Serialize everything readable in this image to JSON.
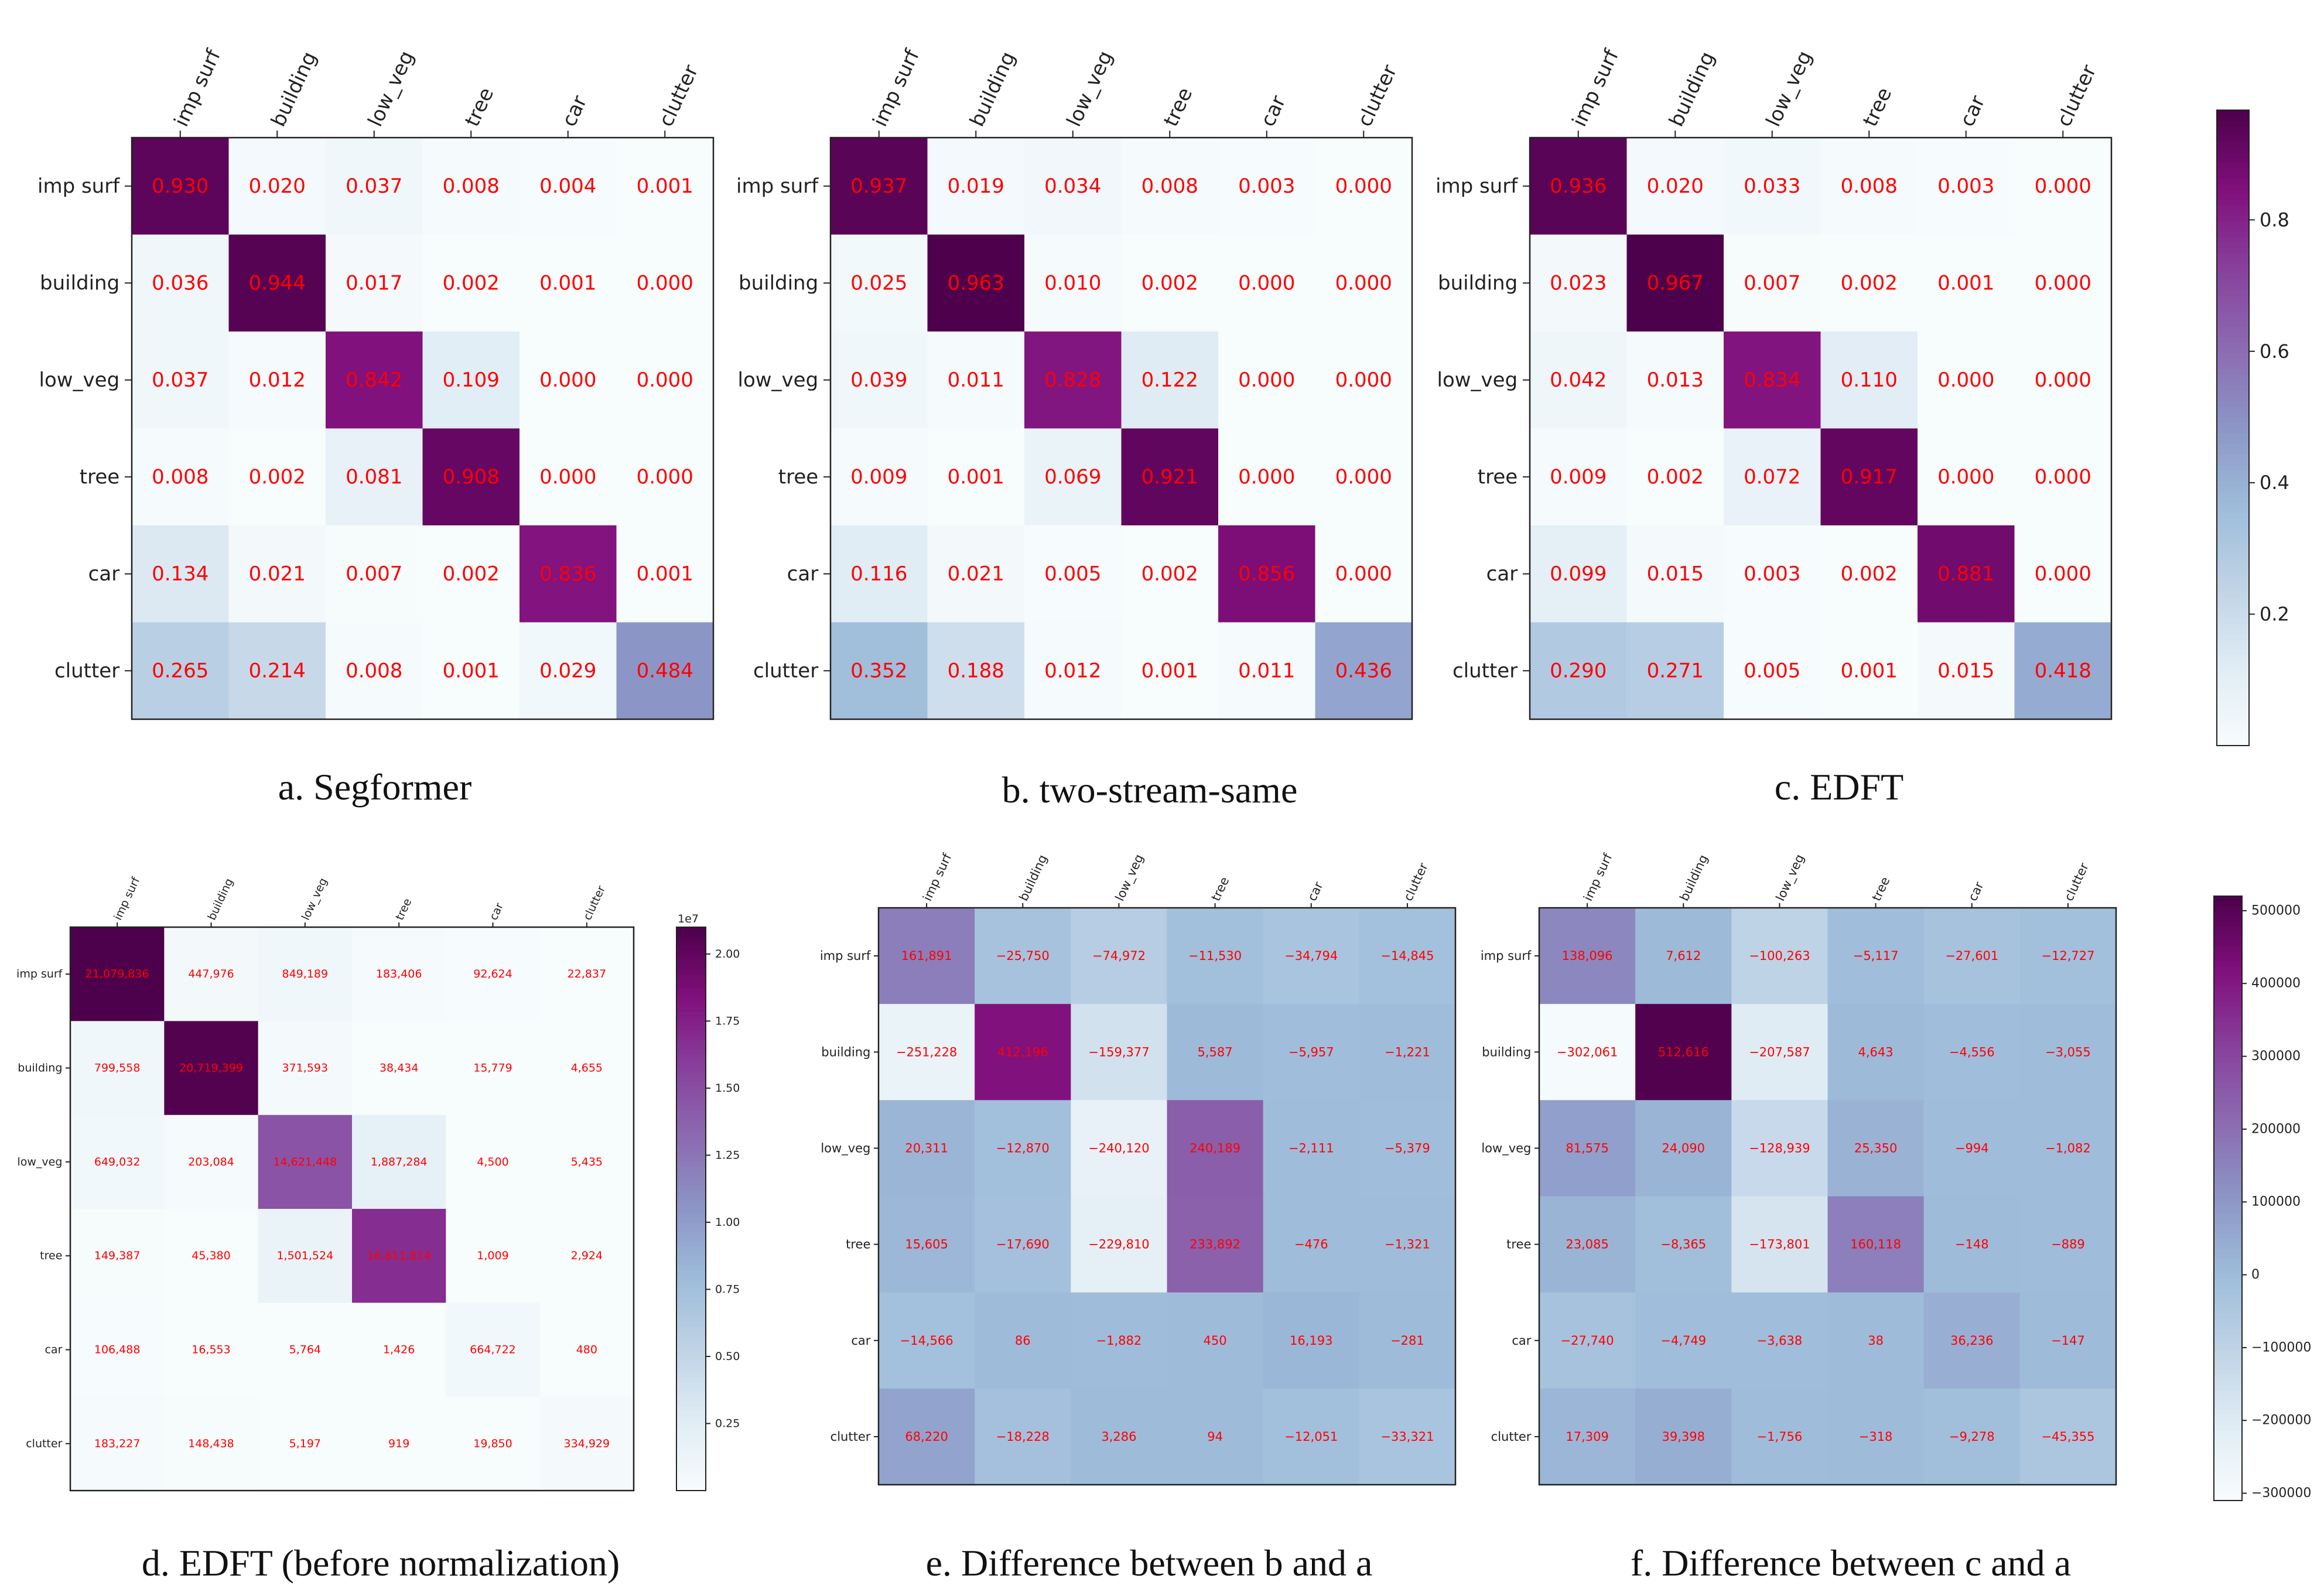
{
  "labels": [
    "imp surf",
    "building",
    "low_veg",
    "tree",
    "car",
    "clutter"
  ],
  "colorbars": [
    {
      "ticks": [
        "0.2",
        "0.4",
        "0.6",
        "0.8"
      ],
      "tick_values": [
        0.2,
        0.4,
        0.6,
        0.8
      ],
      "range": [
        0.0,
        0.967
      ],
      "exponent": ""
    },
    {
      "ticks": [
        "0.25",
        "0.50",
        "0.75",
        "1.00",
        "1.25",
        "1.50",
        "1.75",
        "2.00"
      ],
      "tick_values": [
        0.25,
        0.5,
        0.75,
        1.0,
        1.25,
        1.5,
        1.75,
        2.0
      ],
      "range": [
        0.0,
        2.1
      ],
      "exponent": "1e7"
    },
    {
      "ticks": [
        "−300000",
        "−200000",
        "−100000",
        "0",
        "100000",
        "200000",
        "300000",
        "400000",
        "500000"
      ],
      "tick_values": [
        -300000,
        -200000,
        -100000,
        0,
        100000,
        200000,
        300000,
        400000,
        500000
      ],
      "range": [
        -310000,
        520000
      ],
      "exponent": ""
    }
  ],
  "chart_data": [
    {
      "type": "heatmap",
      "id": "a",
      "title": "a. Segformer",
      "colorbar": 0,
      "values": [
        [
          0.93,
          0.02,
          0.037,
          0.008,
          0.004,
          0.001
        ],
        [
          0.036,
          0.944,
          0.017,
          0.002,
          0.001,
          0.0
        ],
        [
          0.037,
          0.012,
          0.842,
          0.109,
          0.0,
          0.0
        ],
        [
          0.008,
          0.002,
          0.081,
          0.908,
          0.0,
          0.0
        ],
        [
          0.134,
          0.021,
          0.007,
          0.002,
          0.836,
          0.001
        ],
        [
          0.265,
          0.214,
          0.008,
          0.001,
          0.029,
          0.484
        ]
      ],
      "display": [
        [
          "0.930",
          "0.020",
          "0.037",
          "0.008",
          "0.004",
          "0.001"
        ],
        [
          "0.036",
          "0.944",
          "0.017",
          "0.002",
          "0.001",
          "0.000"
        ],
        [
          "0.037",
          "0.012",
          "0.842",
          "0.109",
          "0.000",
          "0.000"
        ],
        [
          "0.008",
          "0.002",
          "0.081",
          "0.908",
          "0.000",
          "0.000"
        ],
        [
          "0.134",
          "0.021",
          "0.007",
          "0.002",
          "0.836",
          "0.001"
        ],
        [
          "0.265",
          "0.214",
          "0.008",
          "0.001",
          "0.029",
          "0.484"
        ]
      ]
    },
    {
      "type": "heatmap",
      "id": "b",
      "title": "b. two-stream-same",
      "colorbar": 0,
      "values": [
        [
          0.937,
          0.019,
          0.034,
          0.008,
          0.003,
          0.0
        ],
        [
          0.025,
          0.963,
          0.01,
          0.002,
          0.0,
          0.0
        ],
        [
          0.039,
          0.011,
          0.828,
          0.122,
          0.0,
          0.0
        ],
        [
          0.009,
          0.001,
          0.069,
          0.921,
          0.0,
          0.0
        ],
        [
          0.116,
          0.021,
          0.005,
          0.002,
          0.856,
          0.0
        ],
        [
          0.352,
          0.188,
          0.012,
          0.001,
          0.011,
          0.436
        ]
      ],
      "display": [
        [
          "0.937",
          "0.019",
          "0.034",
          "0.008",
          "0.003",
          "0.000"
        ],
        [
          "0.025",
          "0.963",
          "0.010",
          "0.002",
          "0.000",
          "0.000"
        ],
        [
          "0.039",
          "0.011",
          "0.828",
          "0.122",
          "0.000",
          "0.000"
        ],
        [
          "0.009",
          "0.001",
          "0.069",
          "0.921",
          "0.000",
          "0.000"
        ],
        [
          "0.116",
          "0.021",
          "0.005",
          "0.002",
          "0.856",
          "0.000"
        ],
        [
          "0.352",
          "0.188",
          "0.012",
          "0.001",
          "0.011",
          "0.436"
        ]
      ]
    },
    {
      "type": "heatmap",
      "id": "c",
      "title": "c. EDFT",
      "colorbar": 0,
      "values": [
        [
          0.936,
          0.02,
          0.033,
          0.008,
          0.003,
          0.0
        ],
        [
          0.023,
          0.967,
          0.007,
          0.002,
          0.001,
          0.0
        ],
        [
          0.042,
          0.013,
          0.834,
          0.11,
          0.0,
          0.0
        ],
        [
          0.009,
          0.002,
          0.072,
          0.917,
          0.0,
          0.0
        ],
        [
          0.099,
          0.015,
          0.003,
          0.002,
          0.881,
          0.0
        ],
        [
          0.29,
          0.271,
          0.005,
          0.001,
          0.015,
          0.418
        ]
      ],
      "display": [
        [
          "0.936",
          "0.020",
          "0.033",
          "0.008",
          "0.003",
          "0.000"
        ],
        [
          "0.023",
          "0.967",
          "0.007",
          "0.002",
          "0.001",
          "0.000"
        ],
        [
          "0.042",
          "0.013",
          "0.834",
          "0.110",
          "0.000",
          "0.000"
        ],
        [
          "0.009",
          "0.002",
          "0.072",
          "0.917",
          "0.000",
          "0.000"
        ],
        [
          "0.099",
          "0.015",
          "0.003",
          "0.002",
          "0.881",
          "0.000"
        ],
        [
          "0.290",
          "0.271",
          "0.005",
          "0.001",
          "0.015",
          "0.418"
        ]
      ]
    },
    {
      "type": "heatmap",
      "id": "d",
      "title": "d. EDFT (before normalization)",
      "colorbar": 1,
      "values": [
        [
          21079836,
          447976,
          849189,
          183406,
          92624,
          22837
        ],
        [
          799558,
          20719399,
          371593,
          38434,
          15779,
          4655
        ],
        [
          649032,
          203084,
          14621448,
          1887284,
          4500,
          5435
        ],
        [
          149387,
          45380,
          1501524,
          16811814,
          1009,
          2924
        ],
        [
          106488,
          16553,
          5764,
          1426,
          664722,
          480
        ],
        [
          183227,
          148438,
          5197,
          919,
          19850,
          334929
        ]
      ],
      "display": [
        [
          "21,079,836",
          "447,976",
          "849,189",
          "183,406",
          "92,624",
          "22,837"
        ],
        [
          "799,558",
          "20,719,399",
          "371,593",
          "38,434",
          "15,779",
          "4,655"
        ],
        [
          "649,032",
          "203,084",
          "14,621,448",
          "1,887,284",
          "4,500",
          "5,435"
        ],
        [
          "149,387",
          "45,380",
          "1,501,524",
          "16,811,814",
          "1,009",
          "2,924"
        ],
        [
          "106,488",
          "16,553",
          "5,764",
          "1,426",
          "664,722",
          "480"
        ],
        [
          "183,227",
          "148,438",
          "5,197",
          "919",
          "19,850",
          "334,929"
        ]
      ]
    },
    {
      "type": "heatmap",
      "id": "e",
      "title": "e.  Difference between b and a",
      "colorbar": 2,
      "values": [
        [
          161891,
          -25750,
          -74972,
          -11530,
          -34794,
          -14845
        ],
        [
          -251228,
          412196,
          -159377,
          5587,
          -5957,
          -1221
        ],
        [
          20311,
          -12870,
          -240120,
          240189,
          -2111,
          -5379
        ],
        [
          15605,
          -17690,
          -229810,
          233892,
          -476,
          -1321
        ],
        [
          -14566,
          86,
          -1882,
          450,
          16193,
          -281
        ],
        [
          68220,
          -18228,
          3286,
          94,
          -12051,
          -33321
        ]
      ],
      "display": [
        [
          "161,891",
          "−25,750",
          "−74,972",
          "−11,530",
          "−34,794",
          "−14,845"
        ],
        [
          "−251,228",
          "412,196",
          "−159,377",
          "5,587",
          "−5,957",
          "−1,221"
        ],
        [
          "20,311",
          "−12,870",
          "−240,120",
          "240,189",
          "−2,111",
          "−5,379"
        ],
        [
          "15,605",
          "−17,690",
          "−229,810",
          "233,892",
          "−476",
          "−1,321"
        ],
        [
          "−14,566",
          "86",
          "−1,882",
          "450",
          "16,193",
          "−281"
        ],
        [
          "68,220",
          "−18,228",
          "3,286",
          "94",
          "−12,051",
          "−33,321"
        ]
      ]
    },
    {
      "type": "heatmap",
      "id": "f",
      "title": "f. Difference between c and a",
      "colorbar": 2,
      "values": [
        [
          138096,
          7612,
          -100263,
          -5117,
          -27601,
          -12727
        ],
        [
          -302061,
          512616,
          -207587,
          4643,
          -4556,
          -3055
        ],
        [
          81575,
          24090,
          -128939,
          25350,
          -994,
          -1082
        ],
        [
          23085,
          -8365,
          -173801,
          160118,
          -148,
          -889
        ],
        [
          -27740,
          -4749,
          -3638,
          38,
          36236,
          -147
        ],
        [
          17309,
          39398,
          -1756,
          -318,
          -9278,
          -45355
        ]
      ],
      "display": [
        [
          "138,096",
          "7,612",
          "−100,263",
          "−5,117",
          "−27,601",
          "−12,727"
        ],
        [
          "−302,061",
          "512,616",
          "−207,587",
          "4,643",
          "−4,556",
          "−3,055"
        ],
        [
          "81,575",
          "24,090",
          "−128,939",
          "25,350",
          "−994",
          "−1,082"
        ],
        [
          "23,085",
          "−8,365",
          "−173,801",
          "160,118",
          "−148",
          "−889"
        ],
        [
          "−27,740",
          "−4,749",
          "−3,638",
          "38",
          "36,236",
          "−147"
        ],
        [
          "17,309",
          "39,398",
          "−1,756",
          "−318",
          "−9,278",
          "−45,355"
        ]
      ]
    }
  ],
  "colors": {
    "text": "#ff0000",
    "axis": "#222222",
    "caption": "#111111"
  }
}
